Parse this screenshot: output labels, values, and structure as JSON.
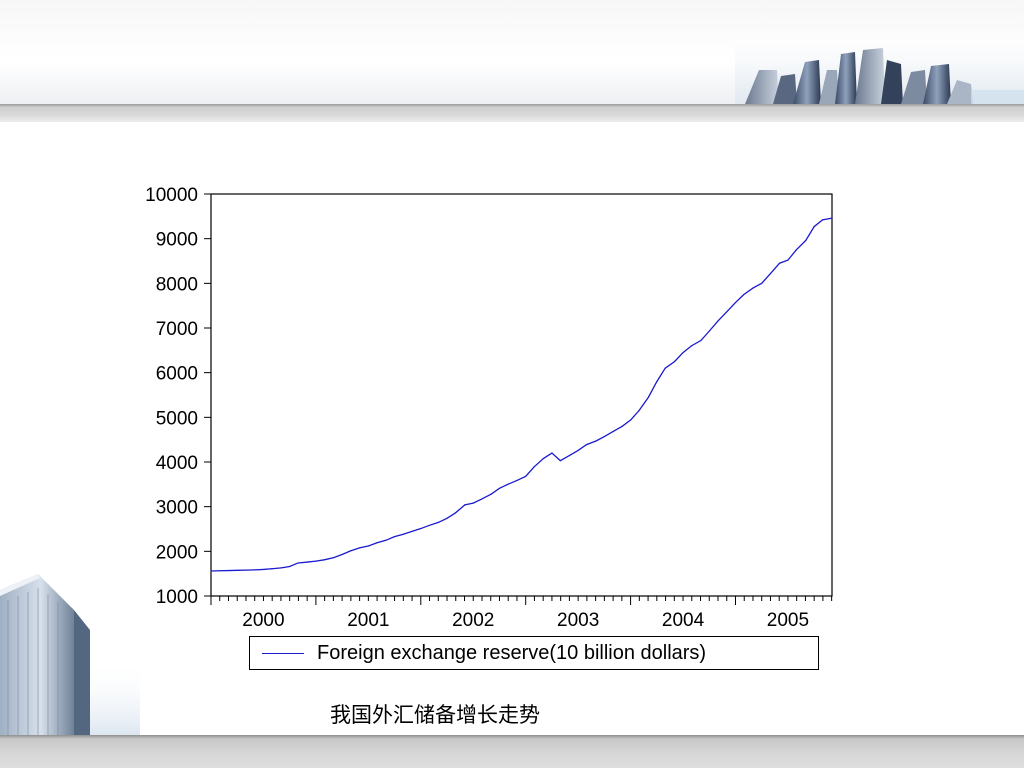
{
  "caption": "我国外汇储备增长走势",
  "colors": {
    "series": "#1a1ad0",
    "axis": "#000000"
  },
  "chart_data": {
    "type": "line",
    "title": "",
    "xlabel": "",
    "ylabel": "",
    "ylim": [
      1000,
      10000
    ],
    "yticks": [
      1000,
      2000,
      3000,
      4000,
      5000,
      6000,
      7000,
      8000,
      9000,
      10000
    ],
    "xlim": [
      2000.0,
      2005.92
    ],
    "xticks_labels": [
      "2000",
      "2001",
      "2002",
      "2003",
      "2004",
      "2005"
    ],
    "grid": false,
    "legend_position": "bottom",
    "series": [
      {
        "name": "Foreign exchange reserve(10 billion dollars)",
        "x": [
          2000.0,
          2000.08,
          2000.17,
          2000.25,
          2000.33,
          2000.42,
          2000.5,
          2000.58,
          2000.67,
          2000.75,
          2000.83,
          2000.92,
          2001.0,
          2001.08,
          2001.17,
          2001.25,
          2001.33,
          2001.42,
          2001.5,
          2001.58,
          2001.67,
          2001.75,
          2001.83,
          2001.92,
          2002.0,
          2002.08,
          2002.17,
          2002.25,
          2002.33,
          2002.42,
          2002.5,
          2002.58,
          2002.67,
          2002.75,
          2002.83,
          2002.92,
          2003.0,
          2003.08,
          2003.17,
          2003.25,
          2003.33,
          2003.42,
          2003.5,
          2003.58,
          2003.67,
          2003.75,
          2003.83,
          2003.92,
          2004.0,
          2004.08,
          2004.17,
          2004.25,
          2004.33,
          2004.42,
          2004.5,
          2004.58,
          2004.67,
          2004.75,
          2004.83,
          2004.92,
          2005.0,
          2005.08,
          2005.17,
          2005.25,
          2005.33,
          2005.42,
          2005.5,
          2005.58,
          2005.67,
          2005.75,
          2005.83,
          2005.92
        ],
        "values": [
          1560,
          1565,
          1570,
          1575,
          1580,
          1585,
          1595,
          1610,
          1630,
          1660,
          1740,
          1760,
          1780,
          1810,
          1860,
          1930,
          2010,
          2080,
          2120,
          2190,
          2250,
          2330,
          2380,
          2450,
          2510,
          2580,
          2650,
          2740,
          2860,
          3040,
          3080,
          3170,
          3280,
          3410,
          3500,
          3590,
          3680,
          3890,
          4080,
          4200,
          4030,
          4150,
          4260,
          4390,
          4470,
          4570,
          4680,
          4800,
          4940,
          5150,
          5450,
          5800,
          6100,
          6250,
          6450,
          6600,
          6720,
          6930,
          7150,
          7370,
          7570,
          7750,
          7900,
          8000,
          8210,
          8450,
          8520,
          8750,
          8960,
          9270,
          9420,
          9460
        ]
      }
    ]
  },
  "legend": {
    "label": "Foreign exchange reserve(10 billion dollars)"
  }
}
